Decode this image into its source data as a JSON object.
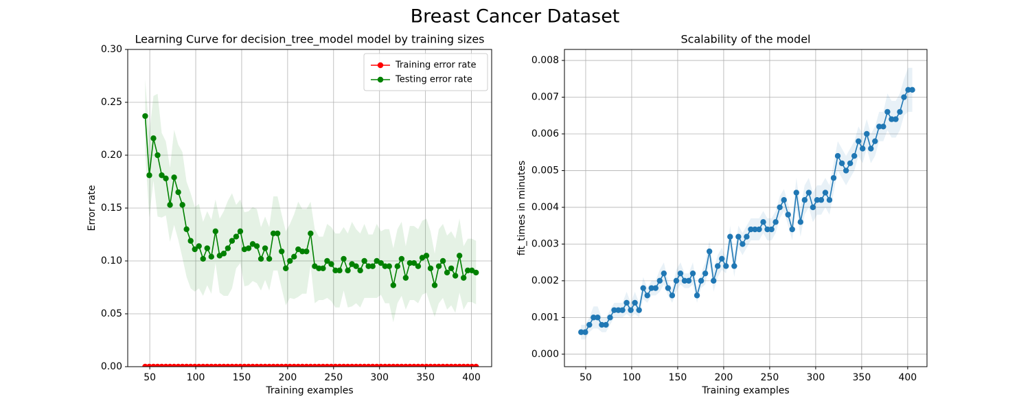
{
  "title": "Breast Cancer Dataset",
  "chart_data": [
    {
      "type": "line",
      "title": "Learning Curve for decision_tree_model model by training sizes",
      "xlabel": "Training examples",
      "ylabel": "Error rate",
      "x": [
        45,
        49.5,
        54,
        58.5,
        63,
        67.5,
        72,
        76.5,
        81,
        85.5,
        90,
        94.5,
        99,
        103.5,
        108,
        112.5,
        117,
        121.5,
        126,
        130.5,
        135,
        139.5,
        144,
        148.5,
        153,
        157.5,
        162,
        166.5,
        171,
        175.5,
        180,
        184.5,
        189,
        193.5,
        198,
        202.5,
        207,
        211.5,
        216,
        220.5,
        225,
        229.5,
        234,
        238.5,
        243,
        247.5,
        252,
        256.5,
        261,
        265.5,
        270,
        274.5,
        279,
        283.5,
        288,
        292.5,
        297,
        301.5,
        306,
        310.5,
        315,
        319.5,
        324,
        328.5,
        333,
        337.5,
        342,
        346.5,
        351,
        355.5,
        360,
        364.5,
        369,
        373.5,
        378,
        382.5,
        387,
        391.5,
        396,
        400.5,
        405
      ],
      "series": [
        {
          "name": "Training error rate",
          "color": "#ff0000",
          "values": [
            0,
            0,
            0,
            0,
            0,
            0,
            0,
            0,
            0,
            0,
            0,
            0,
            0,
            0,
            0,
            0,
            0,
            0,
            0,
            0,
            0,
            0,
            0,
            0,
            0,
            0,
            0,
            0,
            0,
            0,
            0,
            0,
            0,
            0,
            0,
            0,
            0,
            0,
            0,
            0,
            0,
            0,
            0,
            0,
            0,
            0,
            0,
            0,
            0,
            0,
            0,
            0,
            0,
            0,
            0,
            0,
            0,
            0,
            0,
            0,
            0,
            0,
            0,
            0,
            0,
            0,
            0,
            0,
            0,
            0,
            0,
            0,
            0,
            0,
            0,
            0,
            0,
            0,
            0,
            0,
            0
          ],
          "std": [
            0,
            0,
            0,
            0,
            0,
            0,
            0,
            0,
            0,
            0,
            0,
            0,
            0,
            0,
            0,
            0,
            0,
            0,
            0,
            0,
            0,
            0,
            0,
            0,
            0,
            0,
            0,
            0,
            0,
            0,
            0,
            0,
            0,
            0,
            0,
            0,
            0,
            0,
            0,
            0,
            0,
            0,
            0,
            0,
            0,
            0,
            0,
            0,
            0,
            0,
            0,
            0,
            0,
            0,
            0,
            0,
            0,
            0,
            0,
            0,
            0,
            0,
            0,
            0,
            0,
            0,
            0,
            0,
            0,
            0,
            0,
            0,
            0,
            0,
            0,
            0,
            0,
            0,
            0,
            0,
            0
          ]
        },
        {
          "name": "Testing error rate",
          "color": "#008000",
          "values": [
            0.237,
            0.181,
            0.216,
            0.2,
            0.181,
            0.178,
            0.153,
            0.179,
            0.165,
            0.153,
            0.13,
            0.119,
            0.111,
            0.114,
            0.102,
            0.112,
            0.104,
            0.128,
            0.105,
            0.107,
            0.112,
            0.119,
            0.123,
            0.128,
            0.111,
            0.112,
            0.116,
            0.114,
            0.102,
            0.112,
            0.102,
            0.126,
            0.126,
            0.109,
            0.093,
            0.1,
            0.104,
            0.111,
            0.109,
            0.109,
            0.126,
            0.095,
            0.093,
            0.093,
            0.1,
            0.097,
            0.091,
            0.091,
            0.102,
            0.091,
            0.097,
            0.095,
            0.091,
            0.1,
            0.095,
            0.095,
            0.1,
            0.098,
            0.095,
            0.095,
            0.077,
            0.095,
            0.102,
            0.084,
            0.098,
            0.098,
            0.095,
            0.103,
            0.105,
            0.093,
            0.077,
            0.095,
            0.1,
            0.089,
            0.093,
            0.086,
            0.105,
            0.084,
            0.091,
            0.091,
            0.089
          ],
          "std": [
            0.035,
            0.04,
            0.04,
            0.058,
            0.04,
            0.035,
            0.035,
            0.045,
            0.045,
            0.05,
            0.045,
            0.045,
            0.04,
            0.04,
            0.035,
            0.035,
            0.035,
            0.03,
            0.035,
            0.04,
            0.045,
            0.045,
            0.03,
            0.03,
            0.035,
            0.035,
            0.035,
            0.035,
            0.03,
            0.03,
            0.03,
            0.035,
            0.035,
            0.035,
            0.035,
            0.035,
            0.04,
            0.045,
            0.04,
            0.04,
            0.03,
            0.035,
            0.03,
            0.03,
            0.035,
            0.035,
            0.035,
            0.035,
            0.03,
            0.035,
            0.04,
            0.035,
            0.035,
            0.035,
            0.03,
            0.03,
            0.035,
            0.03,
            0.035,
            0.035,
            0.035,
            0.035,
            0.035,
            0.03,
            0.035,
            0.035,
            0.035,
            0.035,
            0.035,
            0.035,
            0.03,
            0.035,
            0.035,
            0.035,
            0.035,
            0.035,
            0.035,
            0.03,
            0.03,
            0.03,
            0.03
          ]
        }
      ],
      "xlim": [
        26,
        422
      ],
      "xticks": [
        50,
        100,
        150,
        200,
        250,
        300,
        350,
        400
      ],
      "ylim": [
        0,
        0.3
      ],
      "yticks": [
        {
          "value": 0,
          "label": "0.00"
        },
        {
          "value": 0.05,
          "label": "0.05"
        },
        {
          "value": 0.1,
          "label": "0.10"
        },
        {
          "value": 0.15,
          "label": "0.15"
        },
        {
          "value": 0.2,
          "label": "0.20"
        },
        {
          "value": 0.25,
          "label": "0.25"
        },
        {
          "value": 0.3,
          "label": "0.30"
        }
      ],
      "grid": true,
      "legend": "upper right"
    },
    {
      "type": "line",
      "title": "Scalability of the model",
      "xlabel": "Training examples",
      "ylabel": "fit_times in minutes",
      "x": [
        45,
        49.5,
        54,
        58.5,
        63,
        67.5,
        72,
        76.5,
        81,
        85.5,
        90,
        94.5,
        99,
        103.5,
        108,
        112.5,
        117,
        121.5,
        126,
        130.5,
        135,
        139.5,
        144,
        148.5,
        153,
        157.5,
        162,
        166.5,
        171,
        175.5,
        180,
        184.5,
        189,
        193.5,
        198,
        202.5,
        207,
        211.5,
        216,
        220.5,
        225,
        229.5,
        234,
        238.5,
        243,
        247.5,
        252,
        256.5,
        261,
        265.5,
        270,
        274.5,
        279,
        283.5,
        288,
        292.5,
        297,
        301.5,
        306,
        310.5,
        315,
        319.5,
        324,
        328.5,
        333,
        337.5,
        342,
        346.5,
        351,
        355.5,
        360,
        364.5,
        369,
        373.5,
        378,
        382.5,
        387,
        391.5,
        396,
        400.5,
        405
      ],
      "series": [
        {
          "color": "#1f77b4",
          "values": [
            0.0006,
            0.0006,
            0.0008,
            0.001,
            0.001,
            0.0008,
            0.0008,
            0.001,
            0.0012,
            0.0012,
            0.0012,
            0.0014,
            0.0012,
            0.0014,
            0.0012,
            0.0018,
            0.0016,
            0.0018,
            0.0018,
            0.002,
            0.0022,
            0.0018,
            0.0016,
            0.002,
            0.0022,
            0.002,
            0.002,
            0.0022,
            0.0016,
            0.002,
            0.0022,
            0.0028,
            0.002,
            0.0024,
            0.0026,
            0.0024,
            0.0032,
            0.0024,
            0.0032,
            0.003,
            0.0032,
            0.0034,
            0.0034,
            0.0034,
            0.0036,
            0.0034,
            0.0034,
            0.0036,
            0.004,
            0.0042,
            0.0038,
            0.0034,
            0.0044,
            0.0036,
            0.0042,
            0.0044,
            0.004,
            0.0042,
            0.0042,
            0.0044,
            0.0042,
            0.0048,
            0.0054,
            0.0052,
            0.005,
            0.0052,
            0.0054,
            0.0058,
            0.0056,
            0.006,
            0.0056,
            0.0058,
            0.0062,
            0.0062,
            0.0066,
            0.0064,
            0.0064,
            0.0066,
            0.007,
            0.0072,
            0.0072
          ],
          "std": [
            0.0002,
            0.0002,
            0.0002,
            0.0003,
            0.0003,
            0.0002,
            0.0002,
            0.0002,
            0.0002,
            0.0002,
            0.0002,
            0.0003,
            0.0002,
            0.0003,
            0.0002,
            0.0003,
            0.0002,
            0.0002,
            0.0002,
            0.0003,
            0.0003,
            0.0002,
            0.0002,
            0.0003,
            0.0003,
            0.0002,
            0.0002,
            0.0003,
            0.0002,
            0.0002,
            0.0003,
            0.0003,
            0.0003,
            0.0003,
            0.0003,
            0.0002,
            0.0003,
            0.0003,
            0.0003,
            0.0003,
            0.0003,
            0.0003,
            0.0003,
            0.0003,
            0.0003,
            0.0003,
            0.0003,
            0.0003,
            0.0003,
            0.0003,
            0.0003,
            0.0003,
            0.0004,
            0.0004,
            0.0004,
            0.0004,
            0.0004,
            0.0004,
            0.0004,
            0.0004,
            0.0004,
            0.0004,
            0.0004,
            0.0004,
            0.0004,
            0.0004,
            0.0004,
            0.0004,
            0.0004,
            0.0004,
            0.0004,
            0.0004,
            0.0004,
            0.0004,
            0.0005,
            0.0005,
            0.0005,
            0.0005,
            0.0005,
            0.0006,
            0.0006
          ]
        }
      ],
      "xlim": [
        26.9,
        421
      ],
      "xticks": [
        50,
        100,
        150,
        200,
        250,
        300,
        350,
        400
      ],
      "ylim": [
        -0.00034,
        0.0083
      ],
      "yticks": [
        {
          "value": 0,
          "label": "0.000"
        },
        {
          "value": 0.001,
          "label": "0.001"
        },
        {
          "value": 0.002,
          "label": "0.002"
        },
        {
          "value": 0.003,
          "label": "0.003"
        },
        {
          "value": 0.004,
          "label": "0.004"
        },
        {
          "value": 0.005,
          "label": "0.005"
        },
        {
          "value": 0.006,
          "label": "0.006"
        },
        {
          "value": 0.007,
          "label": "0.007"
        },
        {
          "value": 0.008,
          "label": "0.008"
        }
      ],
      "grid": true
    }
  ]
}
